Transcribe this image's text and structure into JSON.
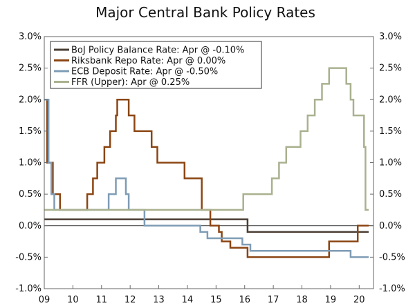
{
  "chart_data": {
    "type": "line",
    "title": "Major Central Bank Policy Rates",
    "xlabel": "",
    "ylabel": "",
    "xlim": [
      2009.0,
      2020.5
    ],
    "ylim": [
      -1.0,
      3.0
    ],
    "y_ticks": [
      3.0,
      2.5,
      2.0,
      1.5,
      1.0,
      0.5,
      0.0,
      -0.5,
      -1.0
    ],
    "y_tick_labels": [
      "3.0%",
      "2.5%",
      "2.0%",
      "1.5%",
      "1.0%",
      "0.5%",
      "0.0%",
      "-0.5%",
      "-1.0%"
    ],
    "x_ticks": [
      2009,
      2010,
      2011,
      2012,
      2013,
      2014,
      2015,
      2016,
      2017,
      2018,
      2019,
      2020
    ],
    "x_tick_labels": [
      "09",
      "10",
      "11",
      "12",
      "13",
      "14",
      "15",
      "16",
      "17",
      "18",
      "19",
      "20"
    ],
    "zero_line": 0.0,
    "legend_position": "top-left",
    "series": [
      {
        "name": "BoJ Policy Balance Rate: Apr @ -0.10%",
        "color": "#4a3d33",
        "points": [
          [
            2009.0,
            0.1
          ],
          [
            2016.1,
            0.1
          ],
          [
            2016.1,
            -0.1
          ],
          [
            2020.33,
            -0.1
          ]
        ]
      },
      {
        "name": "Riksbank Repo Rate: Apr @ 0.00%",
        "color": "#8b4513",
        "points": [
          [
            2009.0,
            2.0
          ],
          [
            2009.1,
            2.0
          ],
          [
            2009.1,
            1.0
          ],
          [
            2009.3,
            1.0
          ],
          [
            2009.3,
            0.5
          ],
          [
            2009.55,
            0.5
          ],
          [
            2009.55,
            0.25
          ],
          [
            2010.5,
            0.25
          ],
          [
            2010.5,
            0.5
          ],
          [
            2010.7,
            0.5
          ],
          [
            2010.7,
            0.75
          ],
          [
            2010.85,
            0.75
          ],
          [
            2010.85,
            1.0
          ],
          [
            2011.1,
            1.0
          ],
          [
            2011.1,
            1.25
          ],
          [
            2011.3,
            1.25
          ],
          [
            2011.3,
            1.5
          ],
          [
            2011.5,
            1.5
          ],
          [
            2011.5,
            1.75
          ],
          [
            2011.55,
            1.75
          ],
          [
            2011.55,
            2.0
          ],
          [
            2011.95,
            2.0
          ],
          [
            2011.95,
            1.75
          ],
          [
            2012.15,
            1.75
          ],
          [
            2012.15,
            1.5
          ],
          [
            2012.75,
            1.5
          ],
          [
            2012.75,
            1.25
          ],
          [
            2012.95,
            1.25
          ],
          [
            2012.95,
            1.0
          ],
          [
            2013.9,
            1.0
          ],
          [
            2013.9,
            0.75
          ],
          [
            2014.5,
            0.75
          ],
          [
            2014.5,
            0.25
          ],
          [
            2014.8,
            0.25
          ],
          [
            2014.8,
            0.0
          ],
          [
            2015.1,
            0.0
          ],
          [
            2015.1,
            -0.1
          ],
          [
            2015.2,
            -0.1
          ],
          [
            2015.2,
            -0.25
          ],
          [
            2015.5,
            -0.25
          ],
          [
            2015.5,
            -0.35
          ],
          [
            2016.1,
            -0.35
          ],
          [
            2016.1,
            -0.5
          ],
          [
            2018.95,
            -0.5
          ],
          [
            2018.95,
            -0.25
          ],
          [
            2019.95,
            -0.25
          ],
          [
            2019.95,
            0.0
          ],
          [
            2020.33,
            0.0
          ]
        ]
      },
      {
        "name": "ECB Deposit Rate: Apr @ -0.50%",
        "color": "#7f9cb5",
        "points": [
          [
            2009.0,
            2.0
          ],
          [
            2009.15,
            2.0
          ],
          [
            2009.15,
            1.0
          ],
          [
            2009.25,
            1.0
          ],
          [
            2009.25,
            0.5
          ],
          [
            2009.35,
            0.5
          ],
          [
            2009.35,
            0.25
          ],
          [
            2011.25,
            0.25
          ],
          [
            2011.25,
            0.5
          ],
          [
            2011.5,
            0.5
          ],
          [
            2011.5,
            0.75
          ],
          [
            2011.85,
            0.75
          ],
          [
            2011.85,
            0.5
          ],
          [
            2011.95,
            0.5
          ],
          [
            2011.95,
            0.25
          ],
          [
            2012.5,
            0.25
          ],
          [
            2012.5,
            0.0
          ],
          [
            2014.45,
            0.0
          ],
          [
            2014.45,
            -0.1
          ],
          [
            2014.7,
            -0.1
          ],
          [
            2014.7,
            -0.2
          ],
          [
            2015.92,
            -0.2
          ],
          [
            2015.92,
            -0.3
          ],
          [
            2016.2,
            -0.3
          ],
          [
            2016.2,
            -0.4
          ],
          [
            2019.7,
            -0.4
          ],
          [
            2019.7,
            -0.5
          ],
          [
            2020.33,
            -0.5
          ]
        ]
      },
      {
        "name": "FFR (Upper): Apr @ 0.25%",
        "color": "#a9b18f",
        "points": [
          [
            2009.0,
            0.25
          ],
          [
            2015.95,
            0.25
          ],
          [
            2015.95,
            0.5
          ],
          [
            2016.95,
            0.5
          ],
          [
            2016.95,
            0.75
          ],
          [
            2017.2,
            0.75
          ],
          [
            2017.2,
            1.0
          ],
          [
            2017.45,
            1.0
          ],
          [
            2017.45,
            1.25
          ],
          [
            2017.95,
            1.25
          ],
          [
            2017.95,
            1.5
          ],
          [
            2018.2,
            1.5
          ],
          [
            2018.2,
            1.75
          ],
          [
            2018.45,
            1.75
          ],
          [
            2018.45,
            2.0
          ],
          [
            2018.7,
            2.0
          ],
          [
            2018.7,
            2.25
          ],
          [
            2018.95,
            2.25
          ],
          [
            2018.95,
            2.5
          ],
          [
            2019.55,
            2.5
          ],
          [
            2019.55,
            2.25
          ],
          [
            2019.7,
            2.25
          ],
          [
            2019.7,
            2.0
          ],
          [
            2019.8,
            2.0
          ],
          [
            2019.8,
            1.75
          ],
          [
            2020.17,
            1.75
          ],
          [
            2020.17,
            1.25
          ],
          [
            2020.22,
            1.25
          ],
          [
            2020.22,
            0.25
          ],
          [
            2020.33,
            0.25
          ]
        ]
      }
    ]
  }
}
